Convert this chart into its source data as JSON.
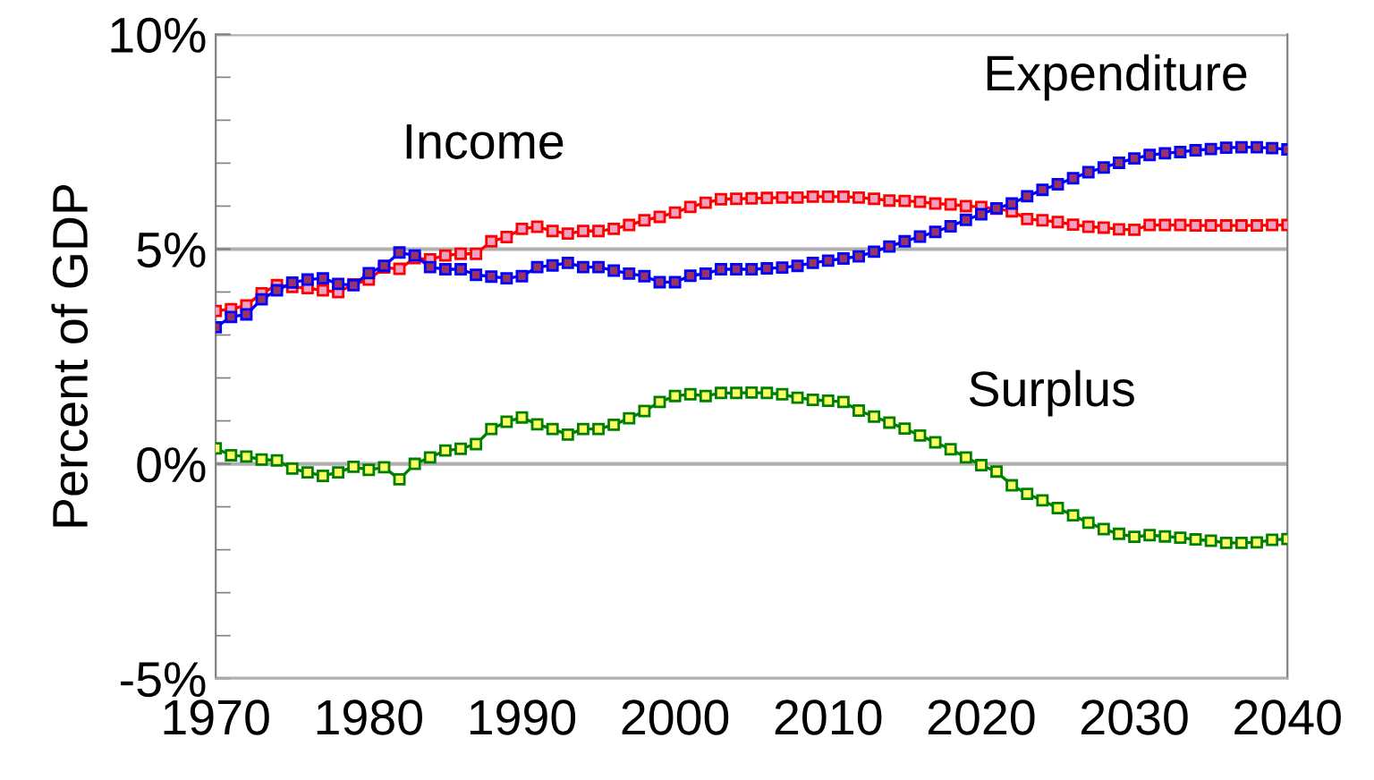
{
  "chart_data": {
    "type": "line",
    "ylabel": "Percent of GDP",
    "x": [
      1970,
      1971,
      1972,
      1973,
      1974,
      1975,
      1976,
      1977,
      1978,
      1979,
      1980,
      1981,
      1982,
      1983,
      1984,
      1985,
      1986,
      1987,
      1988,
      1989,
      1990,
      1991,
      1992,
      1993,
      1994,
      1995,
      1996,
      1997,
      1998,
      1999,
      2000,
      2001,
      2002,
      2003,
      2004,
      2005,
      2006,
      2007,
      2008,
      2009,
      2010,
      2011,
      2012,
      2013,
      2014,
      2015,
      2016,
      2017,
      2018,
      2019,
      2020,
      2021,
      2022,
      2023,
      2024,
      2025,
      2026,
      2027,
      2028,
      2029,
      2030,
      2031,
      2032,
      2033,
      2034,
      2035,
      2036,
      2037,
      2038,
      2039,
      2040
    ],
    "series": [
      {
        "name": "Income",
        "color": "#ff0000",
        "values": [
          3.56,
          3.6,
          3.69,
          3.97,
          4.16,
          4.12,
          4.09,
          4.04,
          4.0,
          4.18,
          4.29,
          4.57,
          4.54,
          4.79,
          4.76,
          4.85,
          4.89,
          4.89,
          5.18,
          5.28,
          5.47,
          5.52,
          5.42,
          5.36,
          5.42,
          5.42,
          5.47,
          5.56,
          5.67,
          5.75,
          5.85,
          5.98,
          6.08,
          6.16,
          6.17,
          6.18,
          6.19,
          6.2,
          6.2,
          6.22,
          6.22,
          6.22,
          6.2,
          6.17,
          6.13,
          6.12,
          6.1,
          6.06,
          6.04,
          6.0,
          5.98,
          5.94,
          5.88,
          5.7,
          5.67,
          5.63,
          5.57,
          5.52,
          5.5,
          5.46,
          5.45,
          5.56,
          5.56,
          5.56,
          5.55,
          5.55,
          5.55,
          5.55,
          5.55,
          5.56,
          5.56
        ]
      },
      {
        "name": "Expenditure",
        "color": "#0000ff",
        "values": [
          3.18,
          3.42,
          3.48,
          3.83,
          4.04,
          4.22,
          4.29,
          4.32,
          4.19,
          4.16,
          4.44,
          4.61,
          4.92,
          4.85,
          4.58,
          4.53,
          4.53,
          4.4,
          4.36,
          4.32,
          4.37,
          4.58,
          4.62,
          4.68,
          4.58,
          4.58,
          4.5,
          4.43,
          4.37,
          4.23,
          4.23,
          4.38,
          4.43,
          4.53,
          4.53,
          4.53,
          4.55,
          4.57,
          4.61,
          4.68,
          4.73,
          4.78,
          4.83,
          4.94,
          5.06,
          5.18,
          5.29,
          5.4,
          5.53,
          5.68,
          5.81,
          5.95,
          6.06,
          6.23,
          6.38,
          6.51,
          6.65,
          6.79,
          6.9,
          7.01,
          7.11,
          7.19,
          7.23,
          7.26,
          7.3,
          7.33,
          7.36,
          7.37,
          7.37,
          7.35,
          7.32
        ]
      },
      {
        "name": "Surplus",
        "color": "#008000",
        "values": [
          0.36,
          0.2,
          0.17,
          0.1,
          0.08,
          -0.11,
          -0.2,
          -0.28,
          -0.2,
          -0.07,
          -0.14,
          -0.08,
          -0.36,
          0.0,
          0.15,
          0.31,
          0.35,
          0.46,
          0.81,
          0.98,
          1.08,
          0.92,
          0.81,
          0.68,
          0.81,
          0.81,
          0.91,
          1.06,
          1.23,
          1.44,
          1.58,
          1.62,
          1.58,
          1.65,
          1.65,
          1.66,
          1.65,
          1.62,
          1.54,
          1.49,
          1.47,
          1.44,
          1.24,
          1.1,
          0.96,
          0.82,
          0.66,
          0.5,
          0.34,
          0.15,
          -0.03,
          -0.18,
          -0.5,
          -0.7,
          -0.85,
          -1.03,
          -1.2,
          -1.37,
          -1.52,
          -1.63,
          -1.7,
          -1.66,
          -1.69,
          -1.72,
          -1.76,
          -1.79,
          -1.84,
          -1.84,
          -1.83,
          -1.77,
          -1.75
        ]
      }
    ],
    "xlim": [
      1970,
      2040
    ],
    "xticks": [
      1970,
      1980,
      1990,
      2000,
      2010,
      2020,
      2030,
      2040
    ],
    "ylim": [
      -5,
      10
    ],
    "yticks": [
      {
        "value": -5,
        "label": "-5%"
      },
      {
        "value": 0,
        "label": "0%"
      },
      {
        "value": 5,
        "label": "5%"
      },
      {
        "value": 10,
        "label": "10%"
      }
    ],
    "grid": "y",
    "marker": "square",
    "line_style": "solid"
  }
}
